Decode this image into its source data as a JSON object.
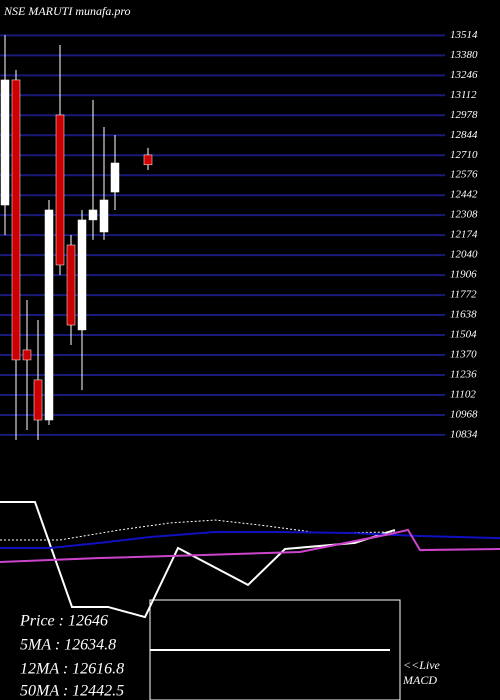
{
  "chart_data": [
    {
      "type": "candlestick",
      "title": "NSE MARUTI munafa.pro",
      "up_color": "#ffffff",
      "down_color": "#cc0000",
      "grid_color": "#1a1a7a",
      "ylim": [
        10800,
        13550
      ],
      "yticks": [
        10834,
        10968,
        11102,
        11236,
        11370,
        11504,
        11638,
        11772,
        11906,
        12040,
        12174,
        12308,
        12442,
        12576,
        12710,
        12844,
        12978,
        13112,
        13246,
        13380,
        13514
      ],
      "candles": [
        {
          "open": 12376,
          "high": 13516,
          "low": 12175,
          "close": 13215
        },
        {
          "open": 13215,
          "high": 13282,
          "low": 10800,
          "close": 11337
        },
        {
          "open": 11404,
          "high": 11739,
          "low": 10867,
          "close": 11337
        },
        {
          "open": 11203,
          "high": 11605,
          "low": 10800,
          "close": 10934
        },
        {
          "open": 10934,
          "high": 12410,
          "low": 10901,
          "close": 12343
        },
        {
          "open": 12980,
          "high": 13449,
          "low": 11907,
          "close": 11974
        },
        {
          "open": 12108,
          "high": 12175,
          "low": 11437,
          "close": 11571
        },
        {
          "open": 11538,
          "high": 12343,
          "low": 11135,
          "close": 12276
        },
        {
          "open": 12276,
          "high": 13081,
          "low": 12142,
          "close": 12343
        },
        {
          "open": 12195,
          "high": 12899,
          "low": 12142,
          "close": 12410
        },
        {
          "open": 12463,
          "high": 12846,
          "low": 12343,
          "close": 12658
        },
        null,
        null,
        {
          "open": 12712,
          "high": 12759,
          "low": 12611,
          "close": 12646
        }
      ]
    },
    {
      "type": "line",
      "xlim": [
        0,
        500
      ],
      "ylim": [
        0,
        100
      ],
      "series": [
        {
          "color": "#ffffff",
          "width": 2,
          "x": [
            0,
            35,
            72,
            108,
            145,
            178,
            248,
            285,
            355,
            395
          ],
          "values": [
            94.3,
            94.3,
            44.3,
            44.3,
            39.5,
            72.4,
            54.8,
            71.9,
            74.8,
            81.0
          ]
        },
        {
          "color": "#ffffff",
          "width": 1,
          "dash": true,
          "x": [
            0,
            60,
            120,
            170,
            215,
            260,
            320,
            395
          ],
          "values": [
            76.2,
            76.2,
            81.0,
            84.3,
            85.7,
            83.3,
            79.5,
            80.0
          ]
        },
        {
          "color": "#1010c0",
          "width": 2,
          "x": [
            0,
            50,
            100,
            150,
            215,
            280,
            350,
            420,
            500
          ],
          "values": [
            72.4,
            72.4,
            74.8,
            77.6,
            80.0,
            80.0,
            79.5,
            78.1,
            77.1
          ]
        },
        {
          "color": "#cc44cc",
          "width": 2,
          "x": [
            0,
            100,
            200,
            300,
            390,
            408,
            420,
            500
          ],
          "values": [
            65.7,
            67.6,
            69.0,
            70.5,
            79.0,
            81.0,
            71.4,
            71.9
          ]
        }
      ]
    }
  ],
  "info": [
    "Price  : 12646",
    "5MA : 12634.8",
    "12MA : 12616.8",
    "50MA : 12442.5"
  ],
  "live": [
    "<<Live",
    "MACD"
  ]
}
